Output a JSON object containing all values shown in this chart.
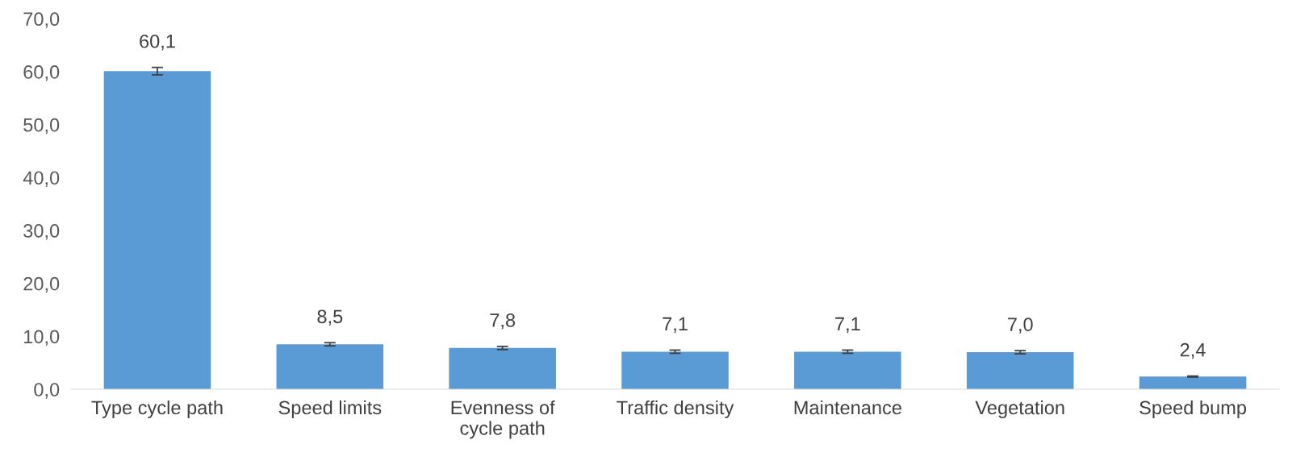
{
  "chart_data": {
    "type": "bar",
    "categories": [
      "Type cycle path",
      "Speed limits",
      "Evenness of\ncycle path",
      "Traffic density",
      "Maintenance",
      "Vegetation",
      "Speed bump"
    ],
    "values": [
      60.1,
      8.5,
      7.8,
      7.1,
      7.1,
      7.0,
      2.4
    ],
    "errors": [
      0.7,
      0.3,
      0.3,
      0.3,
      0.3,
      0.3,
      0.1
    ],
    "value_labels": [
      "60,1",
      "8,5",
      "7,8",
      "7,1",
      "7,1",
      "7,0",
      "2,4"
    ],
    "color": "#5b9bd5",
    "ylim": [
      0,
      70
    ],
    "yticks": [
      {
        "value": 0,
        "label": "0,0"
      },
      {
        "value": 10,
        "label": "10,0"
      },
      {
        "value": 20,
        "label": "20,0"
      },
      {
        "value": 30,
        "label": "30,0"
      },
      {
        "value": 40,
        "label": "40,0"
      },
      {
        "value": 50,
        "label": "50,0"
      },
      {
        "value": 60,
        "label": "60,0"
      },
      {
        "value": 70,
        "label": "70,0"
      }
    ],
    "grid": false
  }
}
